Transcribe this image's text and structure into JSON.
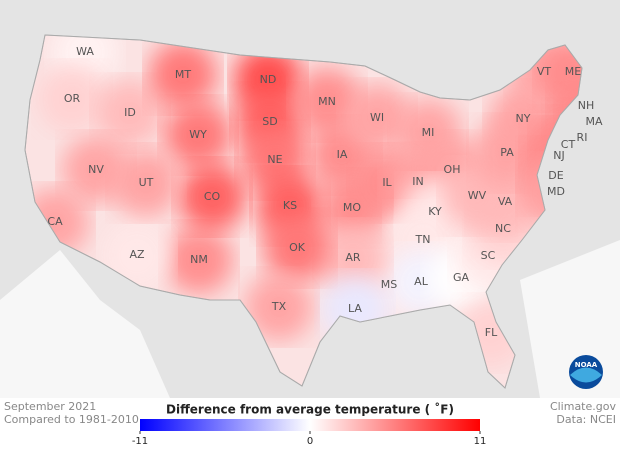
{
  "chart_data": {
    "type": "choropleth",
    "period": "September 2021",
    "baseline": "Compared to 1981-2010",
    "legend_title": "Difference from average temperature ( ˚F)",
    "credit": "Climate.gov",
    "source": "Data: NCEI",
    "logo": "NOAA",
    "regions": [
      "WA",
      "OR",
      "ID",
      "MT",
      "WY",
      "ND",
      "SD",
      "NE",
      "KS",
      "MN",
      "IA",
      "MO",
      "WI",
      "IL",
      "MI",
      "IN",
      "OH",
      "KY",
      "TN",
      "MS",
      "AL",
      "GA",
      "FL",
      "SC",
      "NC",
      "VA",
      "WV",
      "PA",
      "NY",
      "VT",
      "NH",
      "ME",
      "MA",
      "RI",
      "CT",
      "NJ",
      "DE",
      "MD",
      "AR",
      "LA",
      "OK",
      "TX",
      "NM",
      "AZ",
      "CO",
      "UT",
      "NV",
      "CA"
    ],
    "values": [
      0.5,
      2,
      3,
      6,
      6,
      8,
      7,
      6,
      7,
      5,
      5,
      5,
      4,
      5,
      4,
      4,
      4,
      1,
      1,
      1,
      -0.5,
      0,
      2,
      1,
      2,
      3,
      3,
      4,
      4,
      4,
      5,
      5,
      5,
      5,
      5,
      5,
      5,
      4,
      3,
      -1,
      6,
      4,
      5,
      1,
      7,
      4,
      4,
      4
    ],
    "colorlim": [
      -11,
      11
    ],
    "colorticks": [
      -11,
      0,
      11
    ],
    "colors": [
      "#0000ff",
      "#ffffff",
      "#ff0000"
    ]
  }
}
